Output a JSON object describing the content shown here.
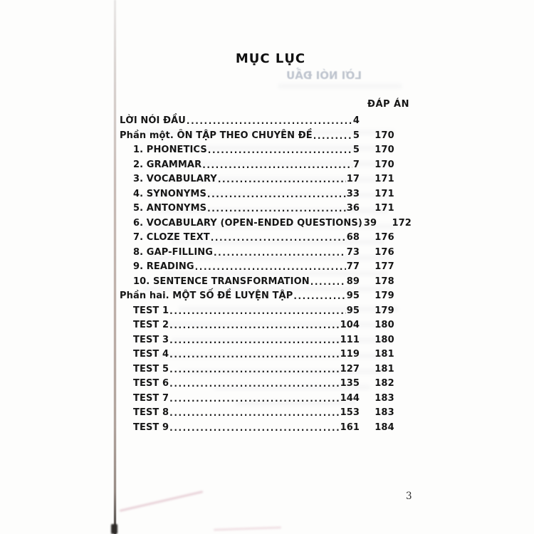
{
  "page": {
    "title": "MỤC LỤC",
    "ghost_title": "LỜI NÓI ĐẦU",
    "answer_column_header": "ĐÁP ÁN",
    "page_number": "3"
  },
  "toc": {
    "entries": [
      {
        "label": "LỜI NÓI ĐẦU",
        "page": "4",
        "answer": "",
        "level": 0
      },
      {
        "label": "Phần một. ÔN TẬP THEO CHUYÊN ĐỀ",
        "page": "5",
        "answer": "170",
        "level": 0
      },
      {
        "label": "1. PHONETICS",
        "page": "5",
        "answer": "170",
        "level": 1
      },
      {
        "label": "2. GRAMMAR",
        "page": "7",
        "answer": "170",
        "level": 1
      },
      {
        "label": "3. VOCABULARY",
        "page": "17",
        "answer": "171",
        "level": 1
      },
      {
        "label": "4. SYNONYMS",
        "page": "33",
        "answer": "171",
        "level": 1
      },
      {
        "label": "5. ANTONYMS",
        "page": "36",
        "answer": "171",
        "level": 1
      },
      {
        "label": "6. VOCABULARY (OPEN-ENDED QUESTIONS)",
        "page": "39",
        "answer": "172",
        "level": 1
      },
      {
        "label": "7. CLOZE TEXT",
        "page": "68",
        "answer": "176",
        "level": 1
      },
      {
        "label": "8. GAP-FILLING",
        "page": "73",
        "answer": "176",
        "level": 1
      },
      {
        "label": "9. READING",
        "page": "77",
        "answer": "177",
        "level": 1
      },
      {
        "label": "10. SENTENCE TRANSFORMATION",
        "page": "89",
        "answer": "178",
        "level": 1
      },
      {
        "label": "Phần hai. MỘT SỐ ĐỀ LUYỆN TẬP",
        "page": "95",
        "answer": "179",
        "level": 0
      },
      {
        "label": "TEST 1",
        "page": "95",
        "answer": "179",
        "level": 1
      },
      {
        "label": "TEST 2",
        "page": "104",
        "answer": "180",
        "level": 1
      },
      {
        "label": "TEST 3",
        "page": "111",
        "answer": "180",
        "level": 1
      },
      {
        "label": "TEST 4",
        "page": "119",
        "answer": "181",
        "level": 1
      },
      {
        "label": "TEST 5",
        "page": "127",
        "answer": "181",
        "level": 1
      },
      {
        "label": "TEST 6",
        "page": "135",
        "answer": "182",
        "level": 1
      },
      {
        "label": "TEST 7",
        "page": "144",
        "answer": "183",
        "level": 1
      },
      {
        "label": "TEST 8",
        "page": "153",
        "answer": "183",
        "level": 1
      },
      {
        "label": "TEST 9",
        "page": "161",
        "answer": "184",
        "level": 1
      }
    ]
  }
}
